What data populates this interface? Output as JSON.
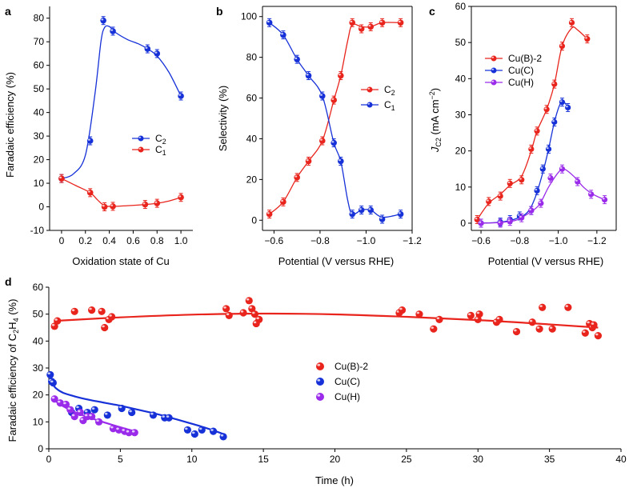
{
  "figure": {
    "colors": {
      "red": "#e8241c",
      "blue": "#1631d8",
      "purple": "#9a2bea",
      "axis": "#000000"
    }
  },
  "chart_data": [
    {
      "panel": "a",
      "type": "line",
      "xlabel": "Oxidation state of Cu",
      "ylabel": "Faradaic efficiency (%)",
      "xlim": [
        -0.1,
        1.1
      ],
      "ylim": [
        -10,
        85
      ],
      "xticks": [
        0,
        0.2,
        0.4,
        0.6,
        0.8,
        1.0
      ],
      "xtick_labels": [
        "0",
        "0.2",
        "0.4",
        "0.6",
        "0.8",
        "1.0"
      ],
      "yticks": [
        -10,
        0,
        10,
        20,
        30,
        40,
        50,
        60,
        70,
        80
      ],
      "legend_position": "center-right",
      "series": [
        {
          "name": "C2",
          "label_main": "C",
          "label_sub": "2",
          "color": "#1631d8",
          "x": [
            0,
            0.24,
            0.35,
            0.43,
            0.72,
            0.8,
            1.0
          ],
          "y": [
            12,
            28,
            79,
            74.5,
            67,
            65,
            47
          ],
          "curve_x": [
            0,
            0.1,
            0.2,
            0.28,
            0.33,
            0.36,
            0.4,
            0.45,
            0.55,
            0.65,
            0.72,
            0.8,
            0.9,
            1.0
          ],
          "curve_y": [
            12,
            14,
            22,
            48,
            70,
            76,
            76.5,
            74,
            71,
            69,
            67,
            64,
            57,
            47
          ]
        },
        {
          "name": "C1",
          "label_main": "C",
          "label_sub": "1",
          "color": "#e8241c",
          "x": [
            0,
            0.24,
            0.36,
            0.43,
            0.7,
            0.8,
            1.0
          ],
          "y": [
            12,
            6,
            0,
            0.2,
            1,
            1.5,
            4
          ],
          "curve_x": [
            0,
            0.12,
            0.24,
            0.3,
            0.36,
            0.43,
            0.55,
            0.7,
            0.8,
            0.9,
            1.0
          ],
          "curve_y": [
            12,
            9,
            6,
            3,
            0.5,
            0.2,
            0.5,
            1,
            1.5,
            2.5,
            4
          ]
        }
      ]
    },
    {
      "panel": "b",
      "type": "line",
      "xlabel": "Potential (V versus RHE)",
      "ylabel": "Selectivity (%)",
      "xlim": [
        -0.55,
        -1.2
      ],
      "ylim": [
        -5,
        105
      ],
      "xticks": [
        -0.6,
        -0.8,
        -1.0,
        -1.2
      ],
      "xtick_labels": [
        "−0.6",
        "−0.8",
        "−1.0",
        "−1.2"
      ],
      "yticks": [
        0,
        20,
        40,
        60,
        80,
        100
      ],
      "legend_position": "center-right",
      "series": [
        {
          "name": "C2",
          "label_main": "C",
          "label_sub": "2",
          "color": "#e8241c",
          "x": [
            -0.58,
            -0.64,
            -0.7,
            -0.75,
            -0.81,
            -0.86,
            -0.89,
            -0.94,
            -0.98,
            -1.02,
            -1.07,
            -1.15
          ],
          "y": [
            3,
            9,
            21,
            29,
            39,
            59,
            71,
            97,
            94,
            95,
            97,
            97
          ],
          "curve_x": [
            -0.58,
            -0.64,
            -0.7,
            -0.75,
            -0.81,
            -0.86,
            -0.89,
            -0.92,
            -0.94,
            -0.98,
            -1.02,
            -1.07,
            -1.15
          ],
          "curve_y": [
            3,
            9,
            21,
            29,
            39,
            59,
            71,
            88,
            96,
            95,
            95,
            97,
            97
          ]
        },
        {
          "name": "C1",
          "label_main": "C",
          "label_sub": "1",
          "color": "#1631d8",
          "x": [
            -0.58,
            -0.64,
            -0.7,
            -0.75,
            -0.81,
            -0.86,
            -0.89,
            -0.94,
            -0.98,
            -1.02,
            -1.07,
            -1.15
          ],
          "y": [
            97,
            91,
            79,
            71,
            61,
            38,
            29,
            3,
            5,
            5,
            0.5,
            3
          ],
          "curve_x": [
            -0.58,
            -0.64,
            -0.7,
            -0.75,
            -0.81,
            -0.86,
            -0.89,
            -0.92,
            -0.94,
            -0.98,
            -1.02,
            -1.07,
            -1.15
          ],
          "curve_y": [
            97,
            91,
            79,
            71,
            61,
            38,
            29,
            10,
            3,
            5,
            5,
            1.5,
            3
          ]
        }
      ]
    },
    {
      "panel": "c",
      "type": "line",
      "xlabel": "Potential (V versus RHE)",
      "ylabel_main": "J",
      "ylabel_sub": "C2",
      "ylabel_unit": " (mA cm",
      "ylabel_sup": "−2",
      "ylabel_end": ")",
      "xlim": [
        -0.55,
        -1.3
      ],
      "ylim": [
        -2,
        60
      ],
      "xticks": [
        -0.6,
        -0.8,
        -1.0,
        -1.2
      ],
      "xtick_labels": [
        "−0.6",
        "−0.8",
        "−1.0",
        "−1.2"
      ],
      "yticks": [
        0,
        10,
        20,
        30,
        40,
        50,
        60
      ],
      "legend_position": "top-left",
      "series": [
        {
          "name": "Cu(B)-2",
          "color": "#e8241c",
          "x": [
            -0.58,
            -0.64,
            -0.7,
            -0.75,
            -0.81,
            -0.86,
            -0.89,
            -0.94,
            -0.98,
            -1.02,
            -1.07,
            -1.15
          ],
          "y": [
            1,
            6,
            7.5,
            11,
            12,
            20.5,
            25.5,
            31.5,
            38.5,
            49,
            55.5,
            51
          ],
          "curve_x": [
            -0.58,
            -0.64,
            -0.7,
            -0.75,
            -0.81,
            -0.86,
            -0.89,
            -0.94,
            -0.98,
            -1.02,
            -1.07,
            -1.1,
            -1.15
          ],
          "curve_y": [
            1,
            5.5,
            8,
            10.5,
            13,
            20,
            25.5,
            31.5,
            38.5,
            49,
            54,
            53.5,
            51
          ]
        },
        {
          "name": "Cu(C)",
          "color": "#1631d8",
          "x": [
            -0.6,
            -0.7,
            -0.75,
            -0.8,
            -0.86,
            -0.89,
            -0.92,
            -0.95,
            -0.98,
            -1.02,
            -1.05
          ],
          "y": [
            0,
            0.3,
            1,
            2,
            3.5,
            9,
            15,
            20.5,
            28,
            33.5,
            32
          ],
          "curve_x": [
            -0.6,
            -0.7,
            -0.78,
            -0.84,
            -0.88,
            -0.92,
            -0.95,
            -0.98,
            -1.01,
            -1.03,
            -1.05
          ],
          "curve_y": [
            0,
            0.3,
            1.2,
            3,
            7,
            14,
            20.5,
            28,
            33,
            33.5,
            32
          ]
        },
        {
          "name": "Cu(H)",
          "color": "#9a2bea",
          "x": [
            -0.6,
            -0.7,
            -0.75,
            -0.81,
            -0.86,
            -0.91,
            -0.96,
            -1.02,
            -1.1,
            -1.17,
            -1.24
          ],
          "y": [
            0,
            0,
            0.5,
            1.5,
            3.5,
            5.5,
            12.5,
            15,
            11.5,
            8,
            6.5
          ],
          "curve_x": [
            -0.6,
            -0.7,
            -0.78,
            -0.84,
            -0.9,
            -0.95,
            -1.0,
            -1.03,
            -1.08,
            -1.13,
            -1.18,
            -1.24
          ],
          "curve_y": [
            0,
            0.2,
            0.8,
            2.5,
            5,
            10,
            14,
            15,
            13,
            10,
            8,
            6.5
          ]
        }
      ]
    },
    {
      "panel": "d",
      "type": "scatter",
      "xlabel": "Time (h)",
      "ylabel_parts": {
        "pre": "Faradaic efficiency of C",
        "sub1": "2",
        "mid": "H",
        "sub2": "4",
        "post": " (%)"
      },
      "xlim": [
        0,
        40
      ],
      "ylim": [
        0,
        60
      ],
      "xticks": [
        0,
        5,
        10,
        15,
        20,
        25,
        30,
        35,
        40
      ],
      "yticks": [
        0,
        10,
        20,
        30,
        40,
        50,
        60
      ],
      "legend_position": "center",
      "series": [
        {
          "name": "Cu(B)-2",
          "color": "#e8241c",
          "x": [
            0.4,
            0.6,
            1.8,
            3.0,
            3.7,
            3.9,
            4.2,
            4.4,
            12.4,
            12.6,
            13.6,
            14.0,
            14.2,
            14.4,
            14.5,
            14.7,
            24.5,
            24.7,
            25.9,
            26.9,
            27.3,
            29.5,
            30.0,
            30.1,
            31.3,
            31.5,
            32.7,
            33.8,
            34.3,
            34.5,
            35.2,
            36.3,
            37.5,
            37.8,
            38.0,
            38.1,
            38.4
          ],
          "y": [
            45.5,
            47.5,
            51,
            51.5,
            51,
            45,
            48,
            49,
            52,
            49.5,
            50.5,
            55,
            52,
            50,
            46.5,
            48,
            50.5,
            51.5,
            50,
            44.5,
            48,
            49.5,
            48,
            50,
            47,
            48,
            43.5,
            47,
            44.5,
            52.5,
            44.5,
            52.5,
            43,
            46.5,
            45,
            46,
            42
          ],
          "fit_x": [
            0.4,
            5,
            10,
            15,
            20,
            25,
            30,
            35,
            38.4
          ],
          "fit_y": [
            47.5,
            48.8,
            49.8,
            50.2,
            49.9,
            49,
            47.8,
            46.2,
            45
          ]
        },
        {
          "name": "Cu(C)",
          "color": "#1631d8",
          "x": [
            0.1,
            0.2,
            0.3,
            1.6,
            2.1,
            2.7,
            3.2,
            4.1,
            5.1,
            5.8,
            7.3,
            8.1,
            8.4,
            9.7,
            10.2,
            10.7,
            11.5,
            12.2
          ],
          "y": [
            27.5,
            25,
            24.5,
            13.5,
            15,
            13.5,
            14.5,
            12.5,
            15,
            13.5,
            12.5,
            11.5,
            11.5,
            7,
            5.5,
            7,
            6.5,
            4.5
          ],
          "fit_x": [
            0.1,
            0.5,
            1,
            2,
            3,
            4,
            5,
            6,
            7,
            8,
            9,
            10,
            11,
            12.2
          ],
          "fit_y": [
            25,
            22.5,
            20.8,
            19.2,
            18,
            17,
            16,
            14.8,
            13.6,
            12.3,
            10.8,
            9.3,
            7.7,
            5.5
          ]
        },
        {
          "name": "Cu(H)",
          "color": "#9a2bea",
          "x": [
            0.4,
            0.8,
            1.2,
            1.5,
            1.8,
            2.2,
            2.4,
            2.7,
            3.0,
            3.5,
            4.5,
            4.9,
            5.3,
            5.6,
            6.0
          ],
          "y": [
            18.5,
            17,
            16.5,
            14.5,
            12,
            13.5,
            10.5,
            12,
            12,
            10,
            7.5,
            7,
            6.5,
            6,
            6
          ],
          "fit_x": [
            0.4,
            1,
            2,
            3,
            4,
            5,
            6
          ],
          "fit_y": [
            18,
            15.8,
            13.2,
            11.3,
            9.6,
            8,
            6.5
          ]
        }
      ]
    }
  ]
}
